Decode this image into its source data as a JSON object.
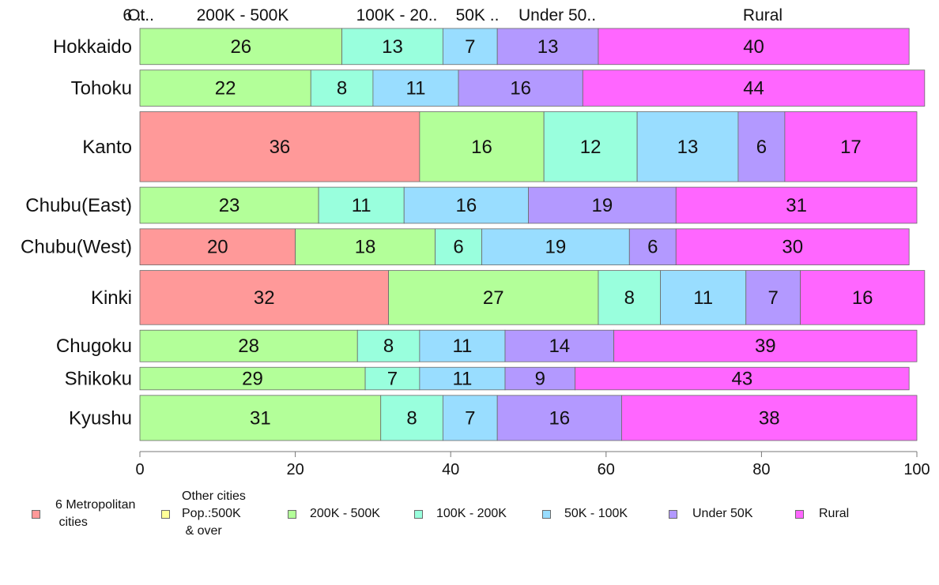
{
  "chart_data": {
    "type": "bar",
    "orientation": "horizontal",
    "stacked": true,
    "title": "",
    "xlabel": "",
    "ylabel": "",
    "xlim": [
      0,
      100
    ],
    "x_ticks": [
      "0",
      "20",
      "40",
      "60",
      "80",
      "100"
    ],
    "grid": false,
    "legend_position": "bottom",
    "categories": [
      "Hokkaido",
      "Tohoku",
      "Kanto",
      "Chubu(East)",
      "Chubu(West)",
      "Kinki",
      "Chugoku",
      "Shikoku",
      "Kyushu"
    ],
    "relative_widths": [
      0.8,
      0.8,
      1.55,
      0.8,
      0.8,
      1.2,
      0.7,
      0.5,
      1.0
    ],
    "series": [
      {
        "name": "6 Metropolitan\n cities",
        "color": "#FF9999",
        "values": [
          0,
          0,
          36,
          0,
          20,
          32,
          0,
          0,
          0
        ]
      },
      {
        "name": "Other cities\nPop.:500K\n & over",
        "color": "#FFFF99",
        "values": [
          0,
          0,
          0,
          0,
          0,
          0,
          0,
          0,
          0
        ]
      },
      {
        "name": "200K - 500K",
        "color": "#B3FF99",
        "values": [
          26,
          22,
          16,
          23,
          18,
          27,
          28,
          29,
          31
        ]
      },
      {
        "name": "100K - 200K",
        "color": "#99FFDD",
        "values": [
          13,
          8,
          12,
          11,
          6,
          8,
          8,
          7,
          8
        ]
      },
      {
        "name": "50K - 100K",
        "color": "#99DDFF",
        "values": [
          7,
          11,
          13,
          16,
          19,
          11,
          11,
          11,
          7
        ]
      },
      {
        "name": "Under 50K",
        "color": "#B399FF",
        "values": [
          13,
          16,
          6,
          19,
          6,
          7,
          14,
          9,
          16
        ]
      },
      {
        "name": "Rural",
        "color": "#FF66FF",
        "values": [
          40,
          44,
          17,
          31,
          30,
          16,
          39,
          43,
          38
        ]
      }
    ],
    "top_labels": [
      "6 ..",
      "Ot..",
      "200K - 500K",
      "100K - 20..",
      "50K ..",
      "Under 50..",
      "Rural"
    ]
  }
}
